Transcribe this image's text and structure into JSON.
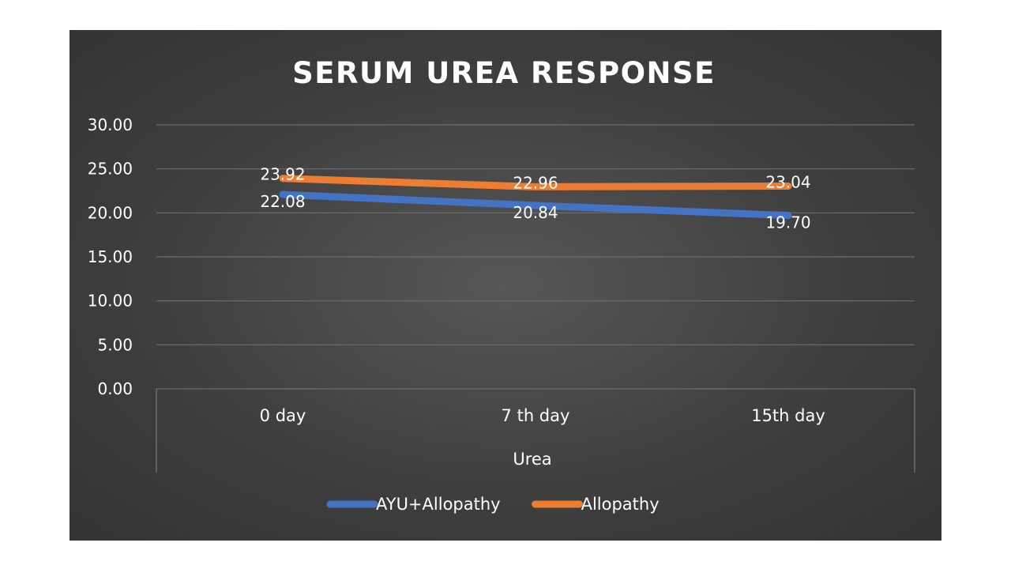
{
  "chart_data": {
    "type": "line",
    "title": "SERUM UREA RESPONSE",
    "categories": [
      "0 day",
      "7 th day",
      "15th day"
    ],
    "group_label": "Urea",
    "ylim": [
      0,
      30
    ],
    "ytick_step": 5,
    "ytick_labels": [
      "0.00",
      "5.00",
      "10.00",
      "15.00",
      "20.00",
      "25.00",
      "30.00"
    ],
    "grid": true,
    "legend_position": "bottom",
    "series": [
      {
        "name": "AYU+Allopathy",
        "values": [
          22.08,
          20.84,
          19.7
        ],
        "labels": [
          "22.08",
          "20.84",
          "19.70"
        ],
        "color": "#4472C4"
      },
      {
        "name": "Allopathy",
        "values": [
          23.92,
          22.96,
          23.04
        ],
        "labels": [
          "23.92",
          "22.96",
          "23.04"
        ],
        "color": "#ED7D31"
      }
    ]
  }
}
